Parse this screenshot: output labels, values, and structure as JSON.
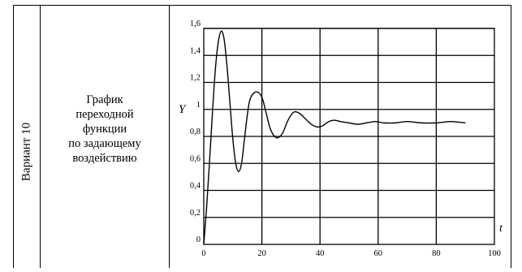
{
  "table": {
    "variant_label": "Вариант 10",
    "description_lines": [
      "График",
      "переходной",
      "функции",
      "по задающему",
      "воздействию"
    ]
  },
  "chart_data": {
    "type": "line",
    "title": "",
    "xlabel": "t",
    "ylabel": "Y",
    "xlim": [
      0,
      100
    ],
    "ylim": [
      0,
      1.6
    ],
    "x_ticks": [
      0,
      20,
      40,
      60,
      80,
      100
    ],
    "x_tick_labels": [
      "0",
      "20",
      "40",
      "60",
      "80",
      "100"
    ],
    "y_ticks": [
      0,
      0.2,
      0.4,
      0.6,
      0.8,
      1.0,
      1.2,
      1.4,
      1.6
    ],
    "y_tick_labels": [
      "0",
      "0,2",
      "0,4",
      "0,6",
      "0,8",
      "1",
      "1,2",
      "1,4",
      "1,6"
    ],
    "grid": true,
    "series": [
      {
        "x": [
          0,
          1,
          2,
          3,
          4,
          5,
          6,
          7,
          8,
          9,
          10,
          11,
          12,
          13,
          14,
          15,
          16,
          18,
          20,
          21.5,
          23,
          25,
          27,
          29,
          31,
          33,
          35,
          37,
          39,
          41,
          43,
          45,
          47,
          50,
          53,
          56,
          59,
          62,
          66,
          70,
          75,
          80,
          85,
          90
        ],
        "y": [
          0,
          0.28,
          0.62,
          0.98,
          1.3,
          1.5,
          1.58,
          1.52,
          1.32,
          1.05,
          0.78,
          0.6,
          0.54,
          0.6,
          0.78,
          0.96,
          1.08,
          1.13,
          1.09,
          0.97,
          0.85,
          0.79,
          0.82,
          0.92,
          0.98,
          0.97,
          0.93,
          0.89,
          0.87,
          0.88,
          0.91,
          0.92,
          0.91,
          0.9,
          0.89,
          0.9,
          0.91,
          0.9,
          0.9,
          0.91,
          0.9,
          0.9,
          0.91,
          0.9
        ]
      }
    ],
    "color": "#000000"
  }
}
